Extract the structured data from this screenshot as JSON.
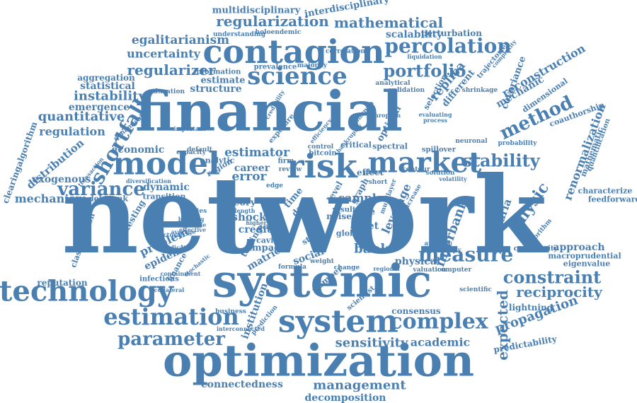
{
  "color": "#4a7fb2",
  "background": "#ffffff",
  "words": [
    "network",
    "financial",
    "systemic",
    "optimization",
    "contagion",
    "science",
    "risk",
    "model",
    "market",
    "system",
    "technology",
    "estimation",
    "measure",
    "percolation",
    "complex",
    "parameter",
    "stability",
    "variance",
    "shortfall",
    "method",
    "constraint",
    "reciprocity",
    "propagation",
    "physic",
    "portfolio",
    "regularization",
    "mathematical",
    "regularizer",
    "estimator",
    "expected",
    "economic",
    "sensitivity",
    "academic",
    "management",
    "connectedness",
    "decomposition",
    "multidisciplinary",
    "interdisciplinary",
    "egalitarianism",
    "uncertainty",
    "scalability",
    "perturbation",
    "instability",
    "quantitative",
    "regulation",
    "emergence",
    "statistical",
    "aggregation",
    "distribution",
    "clearingalgorithm",
    "exogenous",
    "mechanism",
    "debtrank",
    "reputation",
    "infectious",
    "problem",
    "epidemic",
    "backtesting",
    "classification",
    "finance",
    "function",
    "dynamic",
    "transition",
    "theory",
    "shock",
    "credit",
    "matrices",
    "impact",
    "cavity",
    "testing",
    "social",
    "bank",
    "sample",
    "asset",
    "leverage",
    "interbank",
    "physical",
    "approach",
    "macroprudential",
    "eigenvalue",
    "characterize",
    "feedforward",
    "renormalization",
    "mathematic",
    "quantification",
    "coauthorship",
    "malaria",
    "lightning",
    "predictability",
    "consensus",
    "scientist",
    "institution",
    "error",
    "career",
    "replica",
    "different",
    "reconstruction",
    "covariance",
    "mechanic",
    "dimensional",
    "structure",
    "estimate",
    "information",
    "prevalence",
    "majority",
    "correlation",
    "holoendemic",
    "understanding",
    "optimal",
    "spectral",
    "spillover",
    "neuronal",
    "probability",
    "critical",
    "effect",
    "contour",
    "solution",
    "volatility",
    "selection",
    "trajectories",
    "complexity",
    "validation",
    "shrinkage",
    "liquidation",
    "bitcoin",
    "control",
    "exposure",
    "common",
    "noise",
    "global",
    "case",
    "graph",
    "level",
    "study",
    "number",
    "time",
    "data",
    "weight",
    "formula",
    "prediction",
    "business",
    "interconnected",
    "collateral",
    "community",
    "algorithm",
    "scientific",
    "valuation",
    "computer",
    "change",
    "regional",
    "capacity",
    "default",
    "analytic",
    "region",
    "review",
    "firm",
    "education",
    "important",
    "dynamical",
    "diversification",
    "transaction",
    "studies",
    "banking",
    "structural",
    "average",
    "containment",
    "stochastic",
    "analytical",
    "european",
    "applied",
    "pathway",
    "short",
    "phase",
    "edge",
    "result",
    "multilayer",
    "increase",
    "policy",
    "length",
    "credibility",
    "evaluating",
    "process",
    "bankruptcy",
    "efficiency",
    "indicator",
    "unstable",
    "higher",
    "effective"
  ]
}
